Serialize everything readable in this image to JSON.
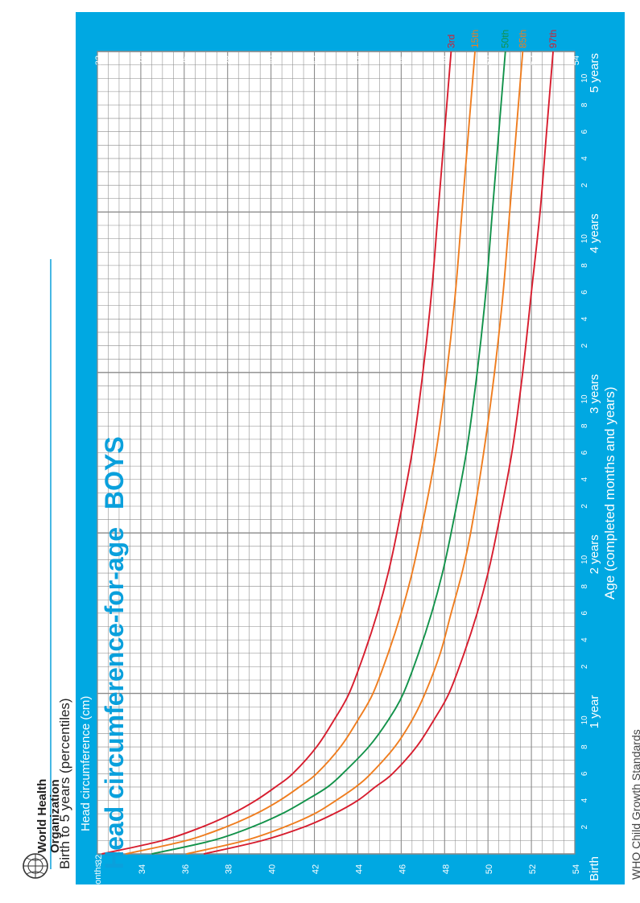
{
  "header": {
    "title_main": "Head circumference-for-age",
    "title_sex": "BOYS",
    "subtitle": "Birth to 5 years (percentiles)",
    "org_line1": "World Health",
    "org_line2": "Organization"
  },
  "footer": {
    "source": "WHO Child Growth Standards"
  },
  "colors": {
    "frame_blue": "#00a8e2",
    "title_blue": "#0aa0dc",
    "grid_line": "#8a8a8a",
    "red": "#d71d2e",
    "orange": "#ef7d1f",
    "green": "#12924a"
  },
  "chart_data": {
    "type": "line",
    "title": "Head circumference-for-age BOYS",
    "subtitle": "Birth to 5 years (percentiles)",
    "xlabel": "Age (completed months and years)",
    "ylabel": "Head circumference (cm)",
    "xlim": [
      0,
      60
    ],
    "ylim": [
      32,
      54
    ],
    "x_unit_label": "Months",
    "x_month_tick_labels": [
      "2",
      "4",
      "6",
      "8",
      "10"
    ],
    "x_year_labels": [
      "Birth",
      "1 year",
      "2 years",
      "3 years",
      "4 years",
      "5 years"
    ],
    "y_ticks": [
      32,
      34,
      36,
      38,
      40,
      42,
      44,
      46,
      48,
      50,
      52,
      54
    ],
    "grid": true,
    "legend": "curve end labels",
    "x": [
      0,
      1,
      2,
      3,
      4,
      5,
      6,
      8,
      10,
      12,
      15,
      18,
      21,
      24,
      30,
      36,
      42,
      48,
      54,
      60
    ],
    "series": [
      {
        "name": "97th",
        "color": "#d71d2e",
        "values": [
          36.9,
          39.6,
          41.5,
          42.9,
          44.0,
          44.8,
          45.6,
          46.7,
          47.5,
          48.2,
          48.9,
          49.5,
          50.0,
          50.4,
          51.1,
          51.6,
          52.0,
          52.4,
          52.7,
          53.0
        ]
      },
      {
        "name": "85th",
        "color": "#ef7d1f",
        "values": [
          36.1,
          38.8,
          40.6,
          42.0,
          43.0,
          43.9,
          44.6,
          45.7,
          46.5,
          47.1,
          47.8,
          48.3,
          48.8,
          49.2,
          49.8,
          50.3,
          50.7,
          51.0,
          51.3,
          51.6
        ]
      },
      {
        "name": "50th",
        "color": "#12924a",
        "values": [
          34.5,
          37.3,
          39.1,
          40.5,
          41.6,
          42.6,
          43.3,
          44.5,
          45.4,
          46.1,
          46.8,
          47.4,
          47.9,
          48.3,
          49.0,
          49.5,
          49.9,
          50.2,
          50.5,
          50.8
        ]
      },
      {
        "name": "15th",
        "color": "#ef7d1f",
        "values": [
          33.3,
          36.1,
          37.9,
          39.3,
          40.4,
          41.3,
          42.1,
          43.2,
          44.0,
          44.7,
          45.4,
          46.0,
          46.5,
          46.9,
          47.6,
          48.1,
          48.5,
          48.8,
          49.1,
          49.4
        ]
      },
      {
        "name": "3rd",
        "color": "#d71d2e",
        "values": [
          32.2,
          35.0,
          36.8,
          38.2,
          39.3,
          40.2,
          41.0,
          42.1,
          42.9,
          43.6,
          44.3,
          44.9,
          45.4,
          45.8,
          46.5,
          47.0,
          47.4,
          47.7,
          48.0,
          48.3
        ]
      }
    ]
  }
}
